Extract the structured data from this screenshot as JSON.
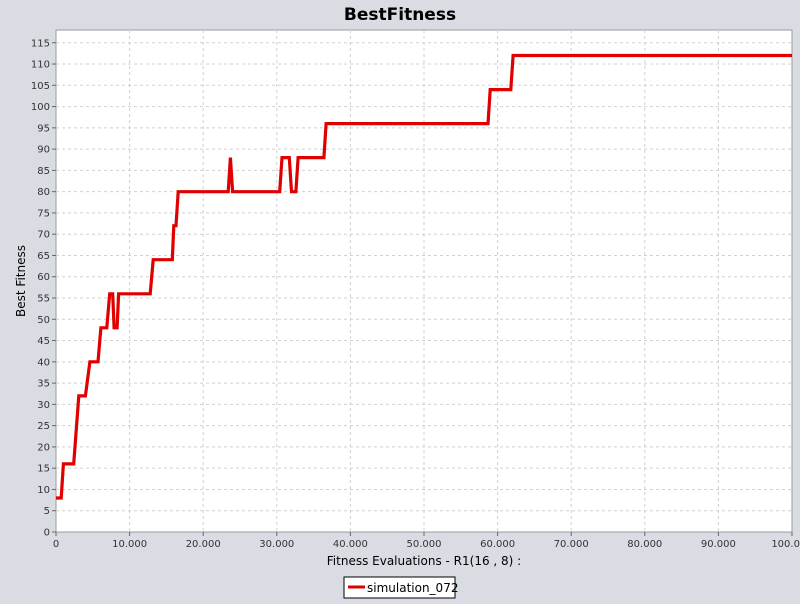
{
  "chart_data": {
    "type": "line",
    "title": "BestFitness",
    "xlabel": "Fitness Evaluations - R1(16 , 8) :",
    "ylabel": "Best Fitness",
    "xlim": [
      0,
      100000
    ],
    "ylim": [
      0,
      118
    ],
    "x_ticks": [
      0,
      10000,
      20000,
      30000,
      40000,
      50000,
      60000,
      70000,
      80000,
      90000,
      100000
    ],
    "x_tick_labels": [
      "0",
      "10.000",
      "20.000",
      "30.000",
      "40.000",
      "50.000",
      "60.000",
      "70.000",
      "80.000",
      "90.000",
      "100.000"
    ],
    "y_ticks": [
      0,
      5,
      10,
      15,
      20,
      25,
      30,
      35,
      40,
      45,
      50,
      55,
      60,
      65,
      70,
      75,
      80,
      85,
      90,
      95,
      100,
      105,
      110,
      115
    ],
    "grid": true,
    "legend_position": "bottom-center",
    "colors": {
      "series": "#e00000",
      "plot_bg": "#ffffff",
      "page_bg": "#d9dde3",
      "grid": "#d0d0d0"
    },
    "series": [
      {
        "name": "simulation_072",
        "points": [
          [
            0,
            8
          ],
          [
            700,
            8
          ],
          [
            1000,
            16
          ],
          [
            2400,
            16
          ],
          [
            3100,
            32
          ],
          [
            4000,
            32
          ],
          [
            4600,
            40
          ],
          [
            5700,
            40
          ],
          [
            6100,
            48
          ],
          [
            6900,
            48
          ],
          [
            7300,
            56
          ],
          [
            7700,
            56
          ],
          [
            7900,
            48
          ],
          [
            8300,
            48
          ],
          [
            8500,
            56
          ],
          [
            12800,
            56
          ],
          [
            13200,
            64
          ],
          [
            15800,
            64
          ],
          [
            16000,
            72
          ],
          [
            16300,
            72
          ],
          [
            16600,
            80
          ],
          [
            23400,
            80
          ],
          [
            23700,
            88
          ],
          [
            24000,
            80
          ],
          [
            30400,
            80
          ],
          [
            30700,
            88
          ],
          [
            31700,
            88
          ],
          [
            32000,
            80
          ],
          [
            32600,
            80
          ],
          [
            32900,
            88
          ],
          [
            36400,
            88
          ],
          [
            36700,
            96
          ],
          [
            58700,
            96
          ],
          [
            59000,
            104
          ],
          [
            61800,
            104
          ],
          [
            62100,
            112
          ],
          [
            100000,
            112
          ]
        ]
      }
    ]
  }
}
